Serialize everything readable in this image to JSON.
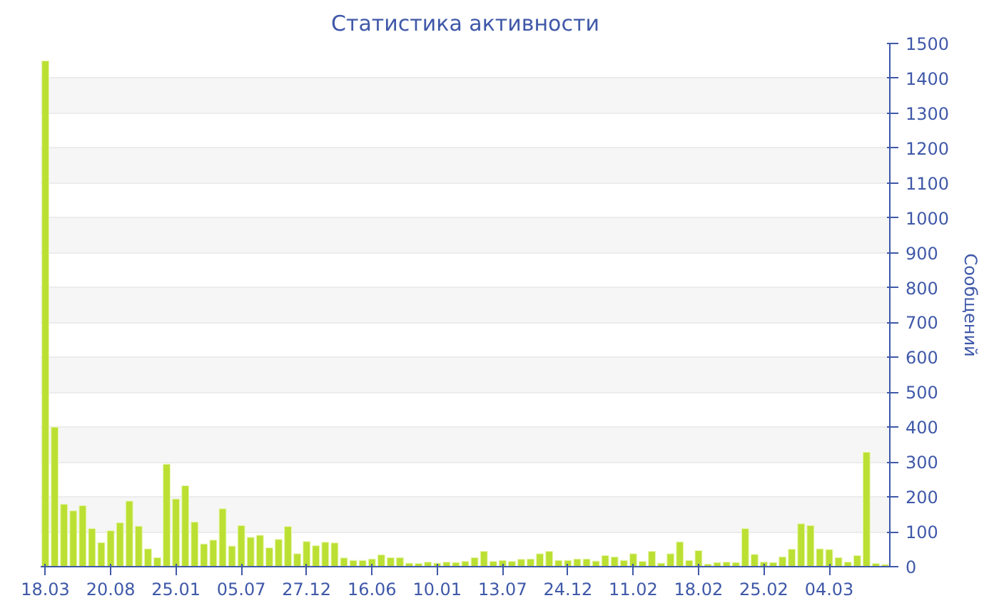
{
  "chart_data": {
    "type": "bar",
    "title": "Статистика активности",
    "ylabel": "Сообщений",
    "categories": [
      "18.03",
      null,
      null,
      null,
      null,
      null,
      null,
      "20.08",
      null,
      null,
      null,
      null,
      null,
      null,
      "25.01",
      null,
      null,
      null,
      null,
      null,
      null,
      "05.07",
      null,
      null,
      null,
      null,
      null,
      null,
      "27.12",
      null,
      null,
      null,
      null,
      null,
      null,
      "16.06",
      null,
      null,
      null,
      null,
      null,
      null,
      "10.01",
      null,
      null,
      null,
      null,
      null,
      null,
      "13.07",
      null,
      null,
      null,
      null,
      null,
      null,
      "24.12",
      null,
      null,
      null,
      null,
      null,
      null,
      "11.02",
      null,
      null,
      null,
      null,
      null,
      null,
      "18.02",
      null,
      null,
      null,
      null,
      null,
      null,
      "25.02",
      null,
      null,
      null,
      null,
      null,
      null,
      "04.03",
      null,
      null,
      null,
      null,
      null,
      null
    ],
    "series": [
      {
        "color": "#bbe033",
        "values": [
          1450,
          400,
          179,
          160,
          175,
          109,
          69,
          103,
          126,
          188,
          116,
          51,
          26,
          294,
          194,
          232,
          128,
          65,
          76,
          166,
          59,
          118,
          84,
          90,
          54,
          78,
          115,
          37,
          72,
          60,
          70,
          68,
          25,
          18,
          18,
          22,
          34,
          26,
          26,
          10,
          9,
          13,
          10,
          13,
          12,
          15,
          26,
          44,
          15,
          18,
          15,
          21,
          22,
          37,
          44,
          18,
          18,
          22,
          22,
          16,
          32,
          28,
          18,
          37,
          15,
          44,
          10,
          37,
          71,
          18,
          46,
          7,
          12,
          13,
          12,
          109,
          35,
          13,
          12,
          28,
          50,
          123,
          118,
          51,
          49,
          26,
          13,
          32,
          328,
          9,
          6
        ]
      }
    ],
    "ylim": [
      0,
      1500
    ],
    "yticks": [
      0,
      100,
      200,
      300,
      400,
      500,
      600,
      700,
      800,
      900,
      1000,
      1100,
      1200,
      1300,
      1400,
      1500
    ],
    "grid": "y"
  }
}
